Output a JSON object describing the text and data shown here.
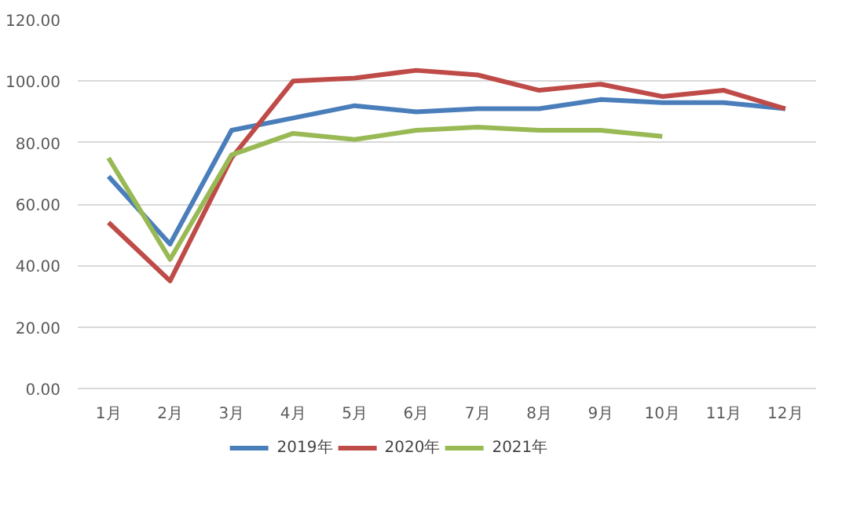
{
  "chart_data": {
    "type": "line",
    "categories": [
      "1月",
      "2月",
      "3月",
      "4月",
      "5月",
      "6月",
      "7月",
      "8月",
      "9月",
      "10月",
      "11月",
      "12月"
    ],
    "series": [
      {
        "name": "2019年",
        "color": "#4a7ebb",
        "values": [
          69,
          47,
          84,
          88,
          92,
          90,
          91,
          91,
          94,
          93,
          93,
          91
        ]
      },
      {
        "name": "2020年",
        "color": "#be4b48",
        "values": [
          54,
          35,
          75,
          100,
          101,
          103.5,
          102,
          97,
          99,
          95,
          97,
          91
        ]
      },
      {
        "name": "2021年",
        "color": "#98b954",
        "values": [
          75,
          42,
          76,
          83,
          81,
          84,
          85,
          84,
          84,
          82,
          null,
          null
        ]
      }
    ],
    "ylim": [
      0,
      120
    ],
    "yticks": [
      {
        "value": 0,
        "label": "0.00"
      },
      {
        "value": 20,
        "label": "20.00"
      },
      {
        "value": 40,
        "label": "40.00"
      },
      {
        "value": 60,
        "label": "60.00"
      },
      {
        "value": 80,
        "label": "80.00"
      },
      {
        "value": 100,
        "label": "100.00"
      },
      {
        "value": 120,
        "label": "120.00"
      }
    ],
    "grid": "y",
    "legend": "bottom",
    "marker": "none",
    "line_style": "solid"
  }
}
